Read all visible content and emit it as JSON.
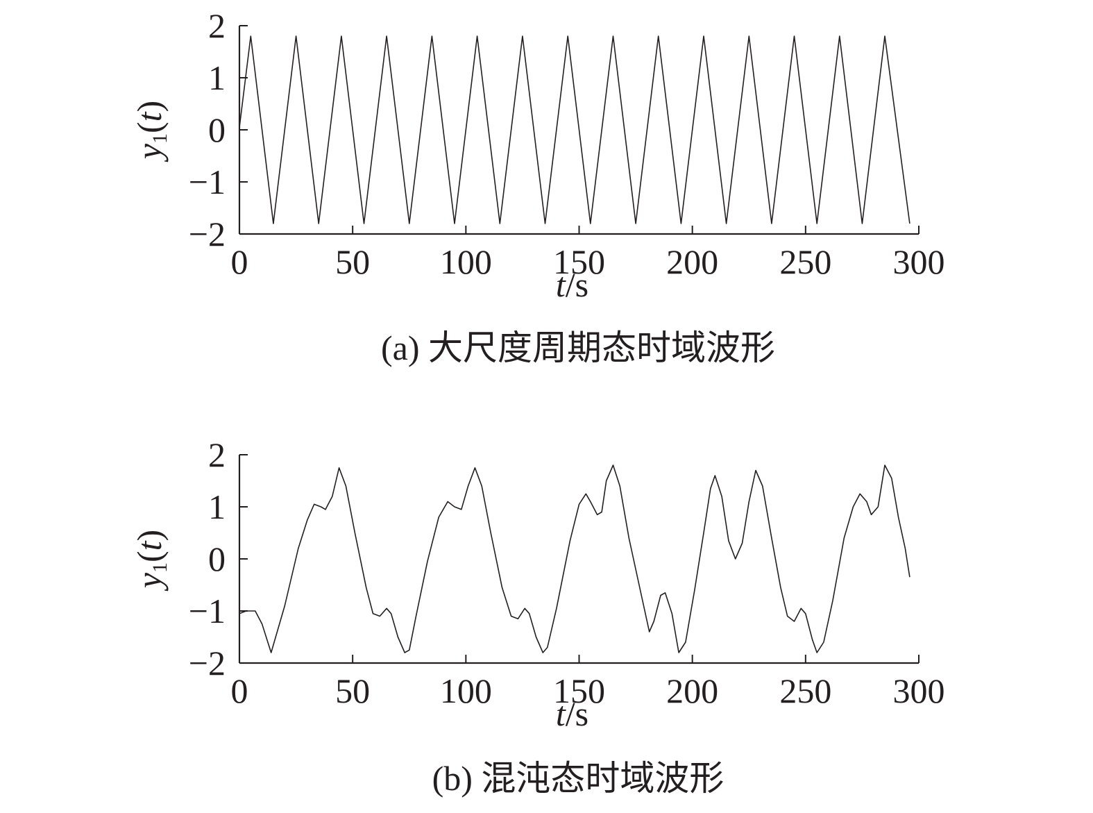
{
  "chart_data": [
    {
      "type": "line",
      "caption": "(a) 大尺度周期态时域波形",
      "xlabel_var": "t",
      "xlabel_unit": "/s",
      "ylabel_var": "y",
      "ylabel_sub": "1",
      "ylabel_arg": "t",
      "xlim": [
        0,
        300
      ],
      "ylim": [
        -2,
        2
      ],
      "xticks": [
        0,
        50,
        100,
        150,
        200,
        250,
        300
      ],
      "yticks": [
        -2,
        -1,
        0,
        1,
        2
      ],
      "xtick_labels": [
        "0",
        "50",
        "100",
        "150",
        "200",
        "250",
        "300"
      ],
      "ytick_labels": [
        "−2",
        "−1",
        "0",
        "1",
        "2"
      ],
      "series": [
        {
          "color": "#231f20",
          "x": [
            0,
            5,
            15,
            25,
            35,
            45,
            55,
            65,
            75,
            85,
            95,
            105,
            115,
            125,
            135,
            145,
            155,
            165,
            175,
            185,
            195,
            205,
            215,
            225,
            235,
            245,
            255,
            265,
            275,
            285,
            296
          ],
          "y": [
            0.05,
            1.8,
            -1.8,
            1.8,
            -1.8,
            1.8,
            -1.8,
            1.8,
            -1.8,
            1.8,
            -1.8,
            1.8,
            -1.8,
            1.8,
            -1.8,
            1.8,
            -1.8,
            1.8,
            -1.8,
            1.8,
            -1.8,
            1.8,
            -1.8,
            1.8,
            -1.8,
            1.8,
            -1.8,
            1.8,
            -1.8,
            1.8,
            -1.8
          ]
        }
      ]
    },
    {
      "type": "line",
      "caption": "(b) 混沌态时域波形",
      "xlabel_var": "t",
      "xlabel_unit": "/s",
      "ylabel_var": "y",
      "ylabel_sub": "1",
      "ylabel_arg": "t",
      "xlim": [
        0,
        300
      ],
      "ylim": [
        -2,
        2
      ],
      "xticks": [
        0,
        50,
        100,
        150,
        200,
        250,
        300
      ],
      "yticks": [
        -2,
        -1,
        0,
        1,
        2
      ],
      "xtick_labels": [
        "0",
        "50",
        "100",
        "150",
        "200",
        "250",
        "300"
      ],
      "ytick_labels": [
        "−2",
        "−1",
        "0",
        "1",
        "2"
      ],
      "series": [
        {
          "color": "#231f20",
          "x": [
            0,
            3,
            7,
            10,
            14,
            20,
            26,
            30,
            33,
            36,
            38,
            41,
            44,
            47,
            51,
            56,
            59,
            62,
            65,
            67,
            70,
            73,
            75,
            78,
            83,
            88,
            92,
            95,
            98,
            101,
            104,
            107,
            111,
            116,
            120,
            123,
            126,
            128,
            131,
            134,
            136,
            140,
            146,
            150,
            153,
            155,
            158,
            160,
            162,
            165,
            168,
            172,
            177,
            181,
            183,
            186,
            188,
            191,
            194,
            197,
            201,
            205,
            208,
            210,
            213,
            216,
            219,
            222,
            225,
            228,
            231,
            235,
            239,
            242,
            245,
            248,
            250,
            253,
            255,
            258,
            262,
            267,
            271,
            274,
            277,
            279,
            282,
            285,
            288,
            291,
            294,
            296
          ],
          "y": [
            -1.05,
            -1.0,
            -1.0,
            -1.25,
            -1.8,
            -0.9,
            0.2,
            0.75,
            1.05,
            1.0,
            0.95,
            1.2,
            1.75,
            1.4,
            0.5,
            -0.55,
            -1.05,
            -1.1,
            -0.95,
            -1.05,
            -1.5,
            -1.8,
            -1.75,
            -1.1,
            -0.05,
            0.8,
            1.1,
            1.0,
            0.95,
            1.4,
            1.75,
            1.4,
            0.5,
            -0.55,
            -1.1,
            -1.15,
            -0.95,
            -1.05,
            -1.5,
            -1.8,
            -1.7,
            -0.95,
            0.35,
            1.05,
            1.25,
            1.1,
            0.85,
            0.9,
            1.5,
            1.8,
            1.4,
            0.4,
            -0.6,
            -1.4,
            -1.2,
            -0.7,
            -0.65,
            -1.05,
            -1.8,
            -1.6,
            -0.6,
            0.5,
            1.35,
            1.6,
            1.2,
            0.35,
            0.0,
            0.3,
            1.1,
            1.7,
            1.4,
            0.4,
            -0.55,
            -1.1,
            -1.2,
            -0.95,
            -1.05,
            -1.55,
            -1.8,
            -1.6,
            -0.8,
            0.4,
            1.0,
            1.25,
            1.1,
            0.85,
            1.0,
            1.8,
            1.55,
            0.8,
            0.2,
            -0.35
          ]
        }
      ]
    }
  ]
}
